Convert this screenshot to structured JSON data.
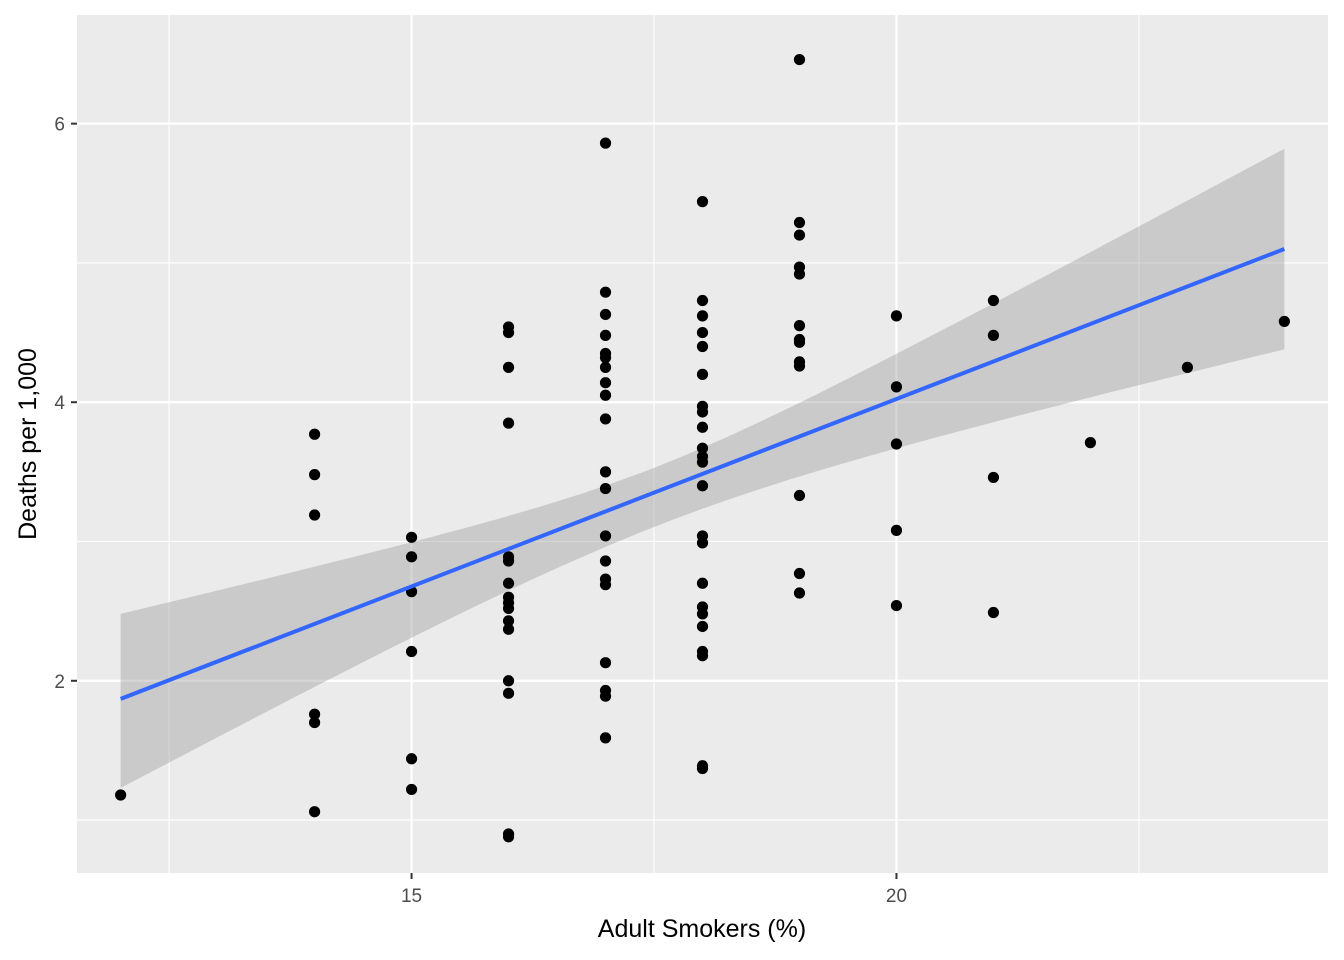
{
  "chart_data": {
    "type": "scatter",
    "title": "",
    "xlabel": "Adult Smokers (%)",
    "ylabel": "Deaths per 1,000",
    "xlim": [
      11.55,
      24.45
    ],
    "ylim": [
      0.62,
      6.78
    ],
    "x_ticks": [
      15,
      20
    ],
    "x_tick_labels": [
      "15",
      "20"
    ],
    "x_minor_ticks": [
      12.5,
      17.5,
      22.5
    ],
    "y_ticks": [
      2,
      4,
      6
    ],
    "y_tick_labels": [
      "2",
      "4",
      "6"
    ],
    "y_minor_ticks": [
      1,
      3,
      5
    ],
    "grid": true,
    "legend": "none",
    "points": [
      {
        "x": 12,
        "y": 1.18
      },
      {
        "x": 14,
        "y": 3.77
      },
      {
        "x": 14,
        "y": 3.48
      },
      {
        "x": 14,
        "y": 3.19
      },
      {
        "x": 14,
        "y": 1.76
      },
      {
        "x": 14,
        "y": 1.7
      },
      {
        "x": 14,
        "y": 1.06
      },
      {
        "x": 15,
        "y": 3.03
      },
      {
        "x": 15,
        "y": 2.89
      },
      {
        "x": 15,
        "y": 2.64
      },
      {
        "x": 15,
        "y": 2.21
      },
      {
        "x": 15,
        "y": 1.44
      },
      {
        "x": 15,
        "y": 1.22
      },
      {
        "x": 16,
        "y": 4.54
      },
      {
        "x": 16,
        "y": 4.5
      },
      {
        "x": 16,
        "y": 4.25
      },
      {
        "x": 16,
        "y": 3.85
      },
      {
        "x": 16,
        "y": 2.89
      },
      {
        "x": 16,
        "y": 2.86
      },
      {
        "x": 16,
        "y": 2.7
      },
      {
        "x": 16,
        "y": 2.6
      },
      {
        "x": 16,
        "y": 2.56
      },
      {
        "x": 16,
        "y": 2.52
      },
      {
        "x": 16,
        "y": 2.43
      },
      {
        "x": 16,
        "y": 2.37
      },
      {
        "x": 16,
        "y": 2.0
      },
      {
        "x": 16,
        "y": 1.91
      },
      {
        "x": 16,
        "y": 0.9
      },
      {
        "x": 16,
        "y": 0.88
      },
      {
        "x": 17,
        "y": 5.86
      },
      {
        "x": 17,
        "y": 4.79
      },
      {
        "x": 17,
        "y": 4.63
      },
      {
        "x": 17,
        "y": 4.48
      },
      {
        "x": 17,
        "y": 4.35
      },
      {
        "x": 17,
        "y": 4.32
      },
      {
        "x": 17,
        "y": 4.25
      },
      {
        "x": 17,
        "y": 4.14
      },
      {
        "x": 17,
        "y": 4.05
      },
      {
        "x": 17,
        "y": 3.88
      },
      {
        "x": 17,
        "y": 3.5
      },
      {
        "x": 17,
        "y": 3.38
      },
      {
        "x": 17,
        "y": 3.04
      },
      {
        "x": 17,
        "y": 2.86
      },
      {
        "x": 17,
        "y": 2.73
      },
      {
        "x": 17,
        "y": 2.69
      },
      {
        "x": 17,
        "y": 2.13
      },
      {
        "x": 17,
        "y": 1.93
      },
      {
        "x": 17,
        "y": 1.89
      },
      {
        "x": 17,
        "y": 1.59
      },
      {
        "x": 18,
        "y": 5.44
      },
      {
        "x": 18,
        "y": 4.73
      },
      {
        "x": 18,
        "y": 4.62
      },
      {
        "x": 18,
        "y": 4.5
      },
      {
        "x": 18,
        "y": 4.4
      },
      {
        "x": 18,
        "y": 4.2
      },
      {
        "x": 18,
        "y": 3.97
      },
      {
        "x": 18,
        "y": 3.93
      },
      {
        "x": 18,
        "y": 3.82
      },
      {
        "x": 18,
        "y": 3.67
      },
      {
        "x": 18,
        "y": 3.61
      },
      {
        "x": 18,
        "y": 3.57
      },
      {
        "x": 18,
        "y": 3.4
      },
      {
        "x": 18,
        "y": 3.04
      },
      {
        "x": 18,
        "y": 2.99
      },
      {
        "x": 18,
        "y": 2.7
      },
      {
        "x": 18,
        "y": 2.53
      },
      {
        "x": 18,
        "y": 2.48
      },
      {
        "x": 18,
        "y": 2.39
      },
      {
        "x": 18,
        "y": 2.21
      },
      {
        "x": 18,
        "y": 2.18
      },
      {
        "x": 18,
        "y": 1.39
      },
      {
        "x": 18,
        "y": 1.37
      },
      {
        "x": 19,
        "y": 6.46
      },
      {
        "x": 19,
        "y": 5.29
      },
      {
        "x": 19,
        "y": 5.2
      },
      {
        "x": 19,
        "y": 4.97
      },
      {
        "x": 19,
        "y": 4.92
      },
      {
        "x": 19,
        "y": 4.55
      },
      {
        "x": 19,
        "y": 4.45
      },
      {
        "x": 19,
        "y": 4.43
      },
      {
        "x": 19,
        "y": 4.29
      },
      {
        "x": 19,
        "y": 4.26
      },
      {
        "x": 19,
        "y": 3.33
      },
      {
        "x": 19,
        "y": 2.77
      },
      {
        "x": 19,
        "y": 2.63
      },
      {
        "x": 20,
        "y": 4.62
      },
      {
        "x": 20,
        "y": 4.11
      },
      {
        "x": 20,
        "y": 3.7
      },
      {
        "x": 20,
        "y": 3.08
      },
      {
        "x": 20,
        "y": 2.54
      },
      {
        "x": 21,
        "y": 4.73
      },
      {
        "x": 21,
        "y": 4.48
      },
      {
        "x": 21,
        "y": 3.46
      },
      {
        "x": 21,
        "y": 2.49
      },
      {
        "x": 22,
        "y": 3.71
      },
      {
        "x": 23,
        "y": 4.25
      },
      {
        "x": 24,
        "y": 4.58
      }
    ],
    "regression": {
      "method": "linear",
      "color": "#3366ff",
      "x_range": [
        12,
        24
      ],
      "fit": [
        1.87,
        5.1
      ],
      "ci_lower": [
        1.23,
        4.38
      ],
      "ci_upper": [
        2.48,
        5.82
      ],
      "ci_center_x": 17.2,
      "ci_center_lower": 3.02,
      "ci_center_upper": 3.45,
      "ci_color": "#999999"
    },
    "colors": {
      "panel_background": "#ebebeb",
      "grid_major": "#ffffff",
      "point": "#000000",
      "ci_band": "#cccccc"
    }
  }
}
